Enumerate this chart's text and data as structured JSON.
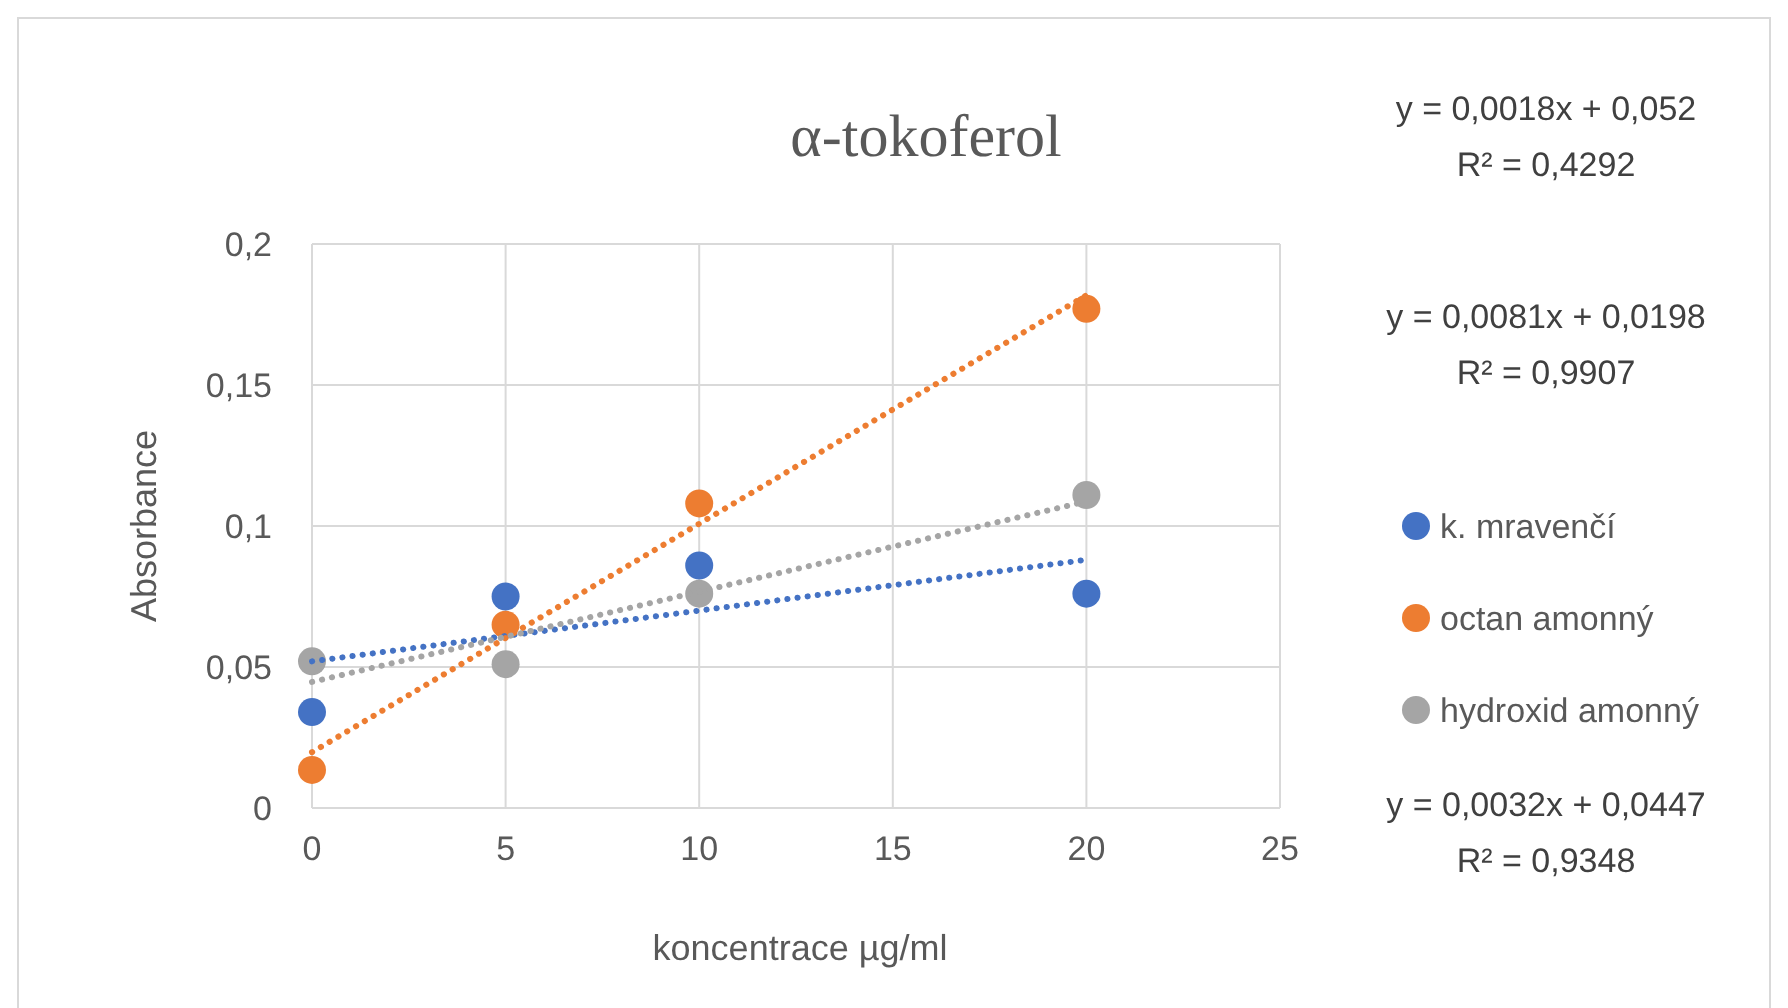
{
  "chart_data": {
    "type": "scatter",
    "title": "α-tokoferol",
    "xlabel": "koncentrace µg/ml",
    "ylabel": "Absorbance",
    "xlim": [
      0,
      25
    ],
    "xticks": [
      0,
      5,
      10,
      15,
      20,
      25
    ],
    "ylim": [
      0,
      0.2
    ],
    "yticks": [
      0,
      {
        "value": 0.05,
        "label": "0,05"
      },
      {
        "value": 0.1,
        "label": "0,1"
      },
      {
        "value": 0.15,
        "label": "0,15"
      },
      {
        "value": 0.2,
        "label": "0,2"
      }
    ],
    "grid": true,
    "legend": "right",
    "marker": "circle",
    "series": [
      {
        "name": "k. mravenčí",
        "color": "#4472c4",
        "x": [
          0,
          5,
          10,
          20
        ],
        "values": [
          0.034,
          0.075,
          0.086,
          0.076
        ]
      },
      {
        "name": "octan amonný",
        "color": "#ed7d31",
        "x": [
          0,
          5,
          10,
          20
        ],
        "values": [
          0.0135,
          0.065,
          0.108,
          0.177
        ]
      },
      {
        "name": "hydroxid amonný",
        "color": "#a5a5a5",
        "x": [
          0,
          5,
          10,
          20
        ],
        "values": [
          0.052,
          0.051,
          0.076,
          0.111
        ]
      },
      {
        "type": "line",
        "color": "#4472c4",
        "line_style": "dotted",
        "marker": "none",
        "x": [
          0,
          20
        ],
        "values": [
          0.052,
          0.088
        ]
      },
      {
        "type": "line",
        "color": "#ed7d31",
        "line_style": "dotted",
        "marker": "none",
        "x": [
          0,
          20
        ],
        "values": [
          0.0198,
          0.1818
        ]
      },
      {
        "type": "line",
        "color": "#a5a5a5",
        "line_style": "dotted",
        "marker": "none",
        "x": [
          0,
          20
        ],
        "values": [
          0.0447,
          0.1087
        ]
      }
    ],
    "annotations": [
      "y = 0,0018x + 0,052",
      "R² = 0,4292",
      "y = 0,0081x + 0,0198",
      "R² = 0,9907",
      "y = 0,0032x + 0,0447",
      "R² = 0,9348"
    ]
  }
}
